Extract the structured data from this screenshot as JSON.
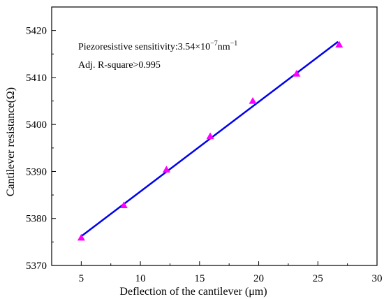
{
  "chart_data": {
    "type": "scatter",
    "xlabel": "Deflection of the cantilever (μm)",
    "ylabel": "Cantilever resistance(Ω)",
    "xlim": [
      2.5,
      30
    ],
    "ylim": [
      5370,
      5425
    ],
    "x_ticks": [
      5,
      10,
      15,
      20,
      25,
      30
    ],
    "y_ticks": [
      5370,
      5380,
      5390,
      5400,
      5410,
      5420
    ],
    "x_tick_labels": [
      "5",
      "10",
      "15",
      "20",
      "25",
      "30"
    ],
    "y_tick_labels": [
      "5370",
      "5380",
      "5390",
      "5400",
      "5410",
      "5420"
    ],
    "grid": false,
    "series": [
      {
        "kind": "points",
        "marker": "triangle",
        "color": "#ff00ff",
        "x": [
          5.0,
          8.6,
          12.2,
          15.9,
          19.5,
          23.2,
          26.8
        ],
        "y": [
          5375.9,
          5382.8,
          5390.4,
          5397.5,
          5405.0,
          5410.8,
          5417.0
        ]
      },
      {
        "kind": "fit-line",
        "color": "#0000ee",
        "x": [
          5.0,
          26.7
        ],
        "y": [
          5376.2,
          5417.6
        ]
      }
    ],
    "annotations": {
      "sensitivity_prefix": "Piezoresistive sensitivity:3.54×10",
      "sensitivity_exp1": "−7",
      "sensitivity_unit": "nm",
      "sensitivity_exp2": "−1",
      "rsquare": "Adj. R-square>0.995"
    }
  }
}
